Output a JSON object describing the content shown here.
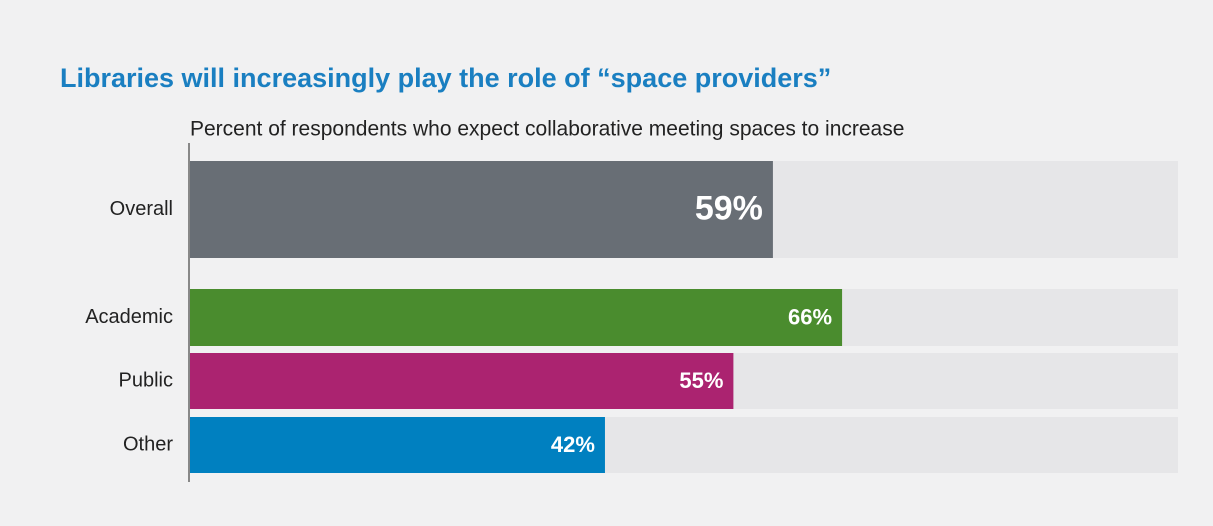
{
  "chart_data": {
    "type": "bar",
    "orientation": "horizontal",
    "title": "Libraries will increasingly play the role of “space providers”",
    "subtitle": "Percent of respondents who expect collaborative meeting spaces to increase",
    "categories": [
      "Overall",
      "Academic",
      "Public",
      "Other"
    ],
    "values": [
      59,
      66,
      55,
      42
    ],
    "value_labels": [
      "59%",
      "66%",
      "55%",
      "42%"
    ],
    "colors": [
      "#686e75",
      "#4a8c2e",
      "#ab2370",
      "#0080c0"
    ],
    "xlim": [
      0,
      100
    ]
  }
}
